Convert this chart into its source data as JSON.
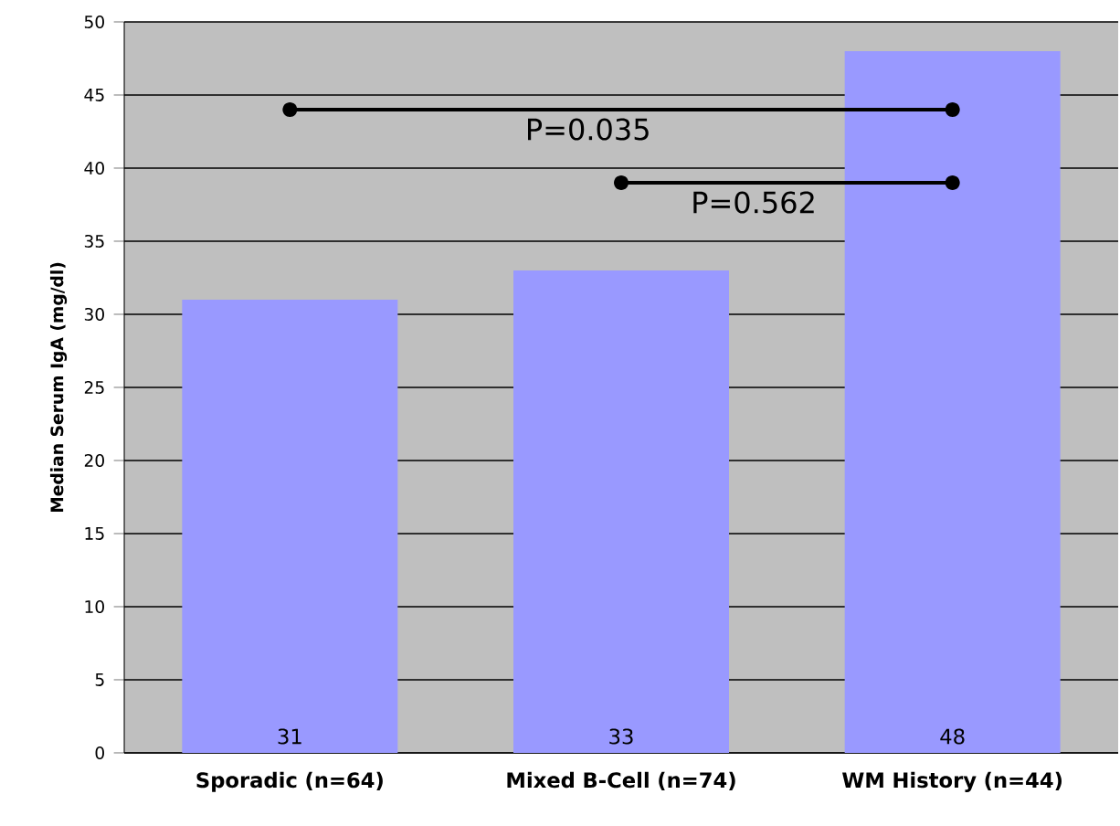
{
  "chart_data": {
    "type": "bar",
    "ylabel": "Median Serum IgA (mg/dl)",
    "categories": [
      "Sporadic (n=64)",
      "Mixed B-Cell (n=74)",
      "WM History (n=44)"
    ],
    "values": [
      31,
      33,
      48
    ],
    "color": "#9999ff",
    "data_labels": true,
    "ylim": [
      0,
      50
    ],
    "yticks": [
      0,
      5,
      10,
      15,
      20,
      25,
      30,
      35,
      40,
      45,
      50
    ],
    "grid": "y",
    "annotations": [
      "P=0.035",
      "P=0.562"
    ]
  }
}
